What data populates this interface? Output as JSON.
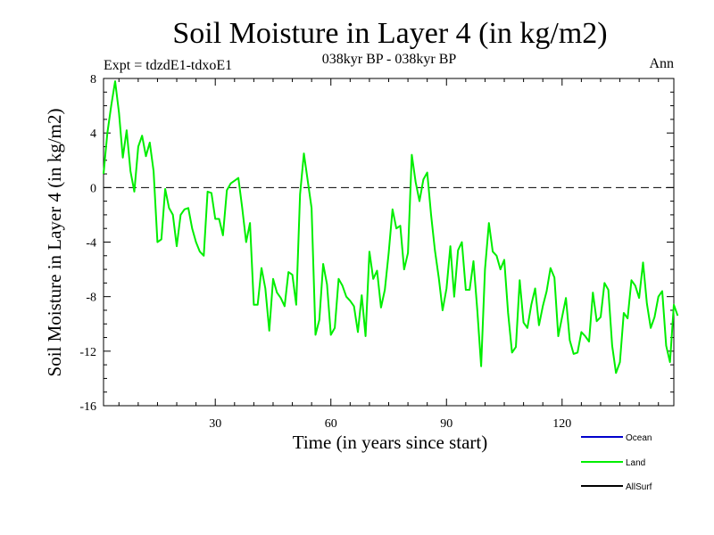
{
  "chart_data": {
    "type": "line",
    "title": "Soil Moisture in Layer 4 (in kg/m2)",
    "subtitle": "038kyr BP - 038kyr BP",
    "expt_label": "Expt = tdzdE1-tdxoE1",
    "period_label": "Ann",
    "xlabel": "Time (in years since start)",
    "ylabel": "Soil Moisture in Layer 4 (in kg/m2)",
    "xlim": [
      1,
      149
    ],
    "ylim": [
      -16,
      8
    ],
    "x_ticks": [
      30,
      60,
      90,
      120
    ],
    "x_tick_labels": [
      "30",
      "60",
      "90",
      "120"
    ],
    "y_ticks": [
      8,
      4,
      0,
      -4,
      -8,
      -12,
      -16
    ],
    "y_tick_labels": [
      "8",
      "4",
      "0",
      "-4",
      "-8",
      "-12",
      "-16"
    ],
    "zero_line": true,
    "legend_position": "bottom-right",
    "series": [
      {
        "name": "Ocean",
        "color": "#0000cc",
        "values": []
      },
      {
        "name": "Land",
        "color": "#00ee00",
        "x_start": 1,
        "values": [
          1.0,
          4.0,
          6.0,
          7.8,
          5.5,
          2.2,
          4.2,
          1.2,
          -0.3,
          3.0,
          3.8,
          2.3,
          3.3,
          1.2,
          -4.0,
          -3.8,
          -0.1,
          -1.5,
          -2.0,
          -4.3,
          -2.0,
          -1.6,
          -1.5,
          -3.0,
          -4.0,
          -4.7,
          -5.0,
          -0.3,
          -0.4,
          -2.3,
          -2.3,
          -3.5,
          -0.2,
          0.3,
          0.5,
          0.7,
          -1.5,
          -4.0,
          -2.6,
          -8.6,
          -8.6,
          -5.9,
          -7.4,
          -10.5,
          -6.7,
          -7.7,
          -8.1,
          -8.7,
          -6.2,
          -6.4,
          -8.6,
          -0.5,
          2.5,
          0.5,
          -1.5,
          -10.8,
          -9.7,
          -5.6,
          -7.1,
          -10.8,
          -10.3,
          -6.7,
          -7.2,
          -8.0,
          -8.3,
          -8.7,
          -10.6,
          -7.9,
          -10.9,
          -4.7,
          -6.7,
          -6.1,
          -8.8,
          -7.5,
          -4.8,
          -1.6,
          -3.0,
          -2.8,
          -6.0,
          -4.8,
          2.4,
          0.4,
          -1.0,
          0.6,
          1.1,
          -2.0,
          -4.6,
          -6.6,
          -9.0,
          -7.4,
          -4.3,
          -8.0,
          -4.6,
          -4.0,
          -7.5,
          -7.5,
          -5.4,
          -9.0,
          -13.1,
          -6.0,
          -2.6,
          -4.7,
          -5.0,
          -6.0,
          -5.3,
          -9.2,
          -12.1,
          -11.7,
          -6.8,
          -9.9,
          -10.3,
          -8.6,
          -7.4,
          -10.1,
          -8.7,
          -7.6,
          -5.9,
          -6.6,
          -10.9,
          -9.5,
          -8.1,
          -11.2,
          -12.2,
          -12.1,
          -10.6,
          -10.9,
          -11.3,
          -7.7,
          -9.8,
          -9.5,
          -7.0,
          -7.5,
          -11.6,
          -13.6,
          -12.8,
          -9.2,
          -9.6,
          -6.8,
          -7.2,
          -8.1,
          -5.5,
          -8.5,
          -10.3,
          -9.5,
          -8.0,
          -7.6,
          -11.6,
          -12.8,
          -8.6,
          -9.4
        ]
      },
      {
        "name": "AllSurf",
        "color": "#000000",
        "values": []
      }
    ]
  }
}
